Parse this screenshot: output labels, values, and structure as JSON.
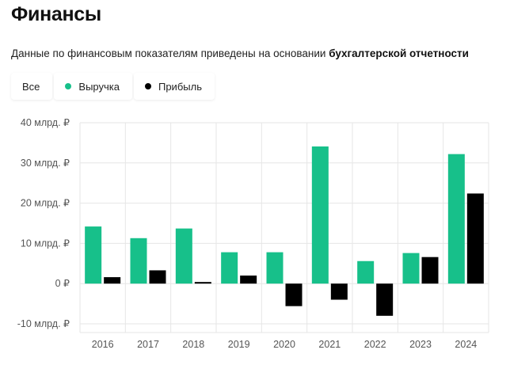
{
  "header": {
    "title": "Финансы",
    "subtitle_prefix": "Данные по финансовым показателям приведены на основании ",
    "subtitle_bold": "бухгалтерской отчетности"
  },
  "filters": [
    {
      "label": "Все",
      "color": null
    },
    {
      "label": "Выручка",
      "color": "#17c08a"
    },
    {
      "label": "Прибыль",
      "color": "#000000"
    }
  ],
  "chart_data": {
    "type": "bar",
    "categories": [
      "2016",
      "2017",
      "2018",
      "2019",
      "2020",
      "2021",
      "2022",
      "2023",
      "2024"
    ],
    "series": [
      {
        "name": "Выручка",
        "color": "#17c08a",
        "values": [
          14.2,
          11.3,
          13.7,
          7.8,
          7.8,
          34.1,
          5.6,
          7.6,
          32.2
        ]
      },
      {
        "name": "Прибыль",
        "color": "#000000",
        "values": [
          1.6,
          3.3,
          0.4,
          2.0,
          -5.6,
          -4.0,
          -8.0,
          6.6,
          22.4
        ]
      }
    ],
    "y_ticks": [
      {
        "value": 40,
        "label": "40 млрд. ₽"
      },
      {
        "value": 30,
        "label": "30 млрд. ₽"
      },
      {
        "value": 20,
        "label": "20 млрд. ₽"
      },
      {
        "value": 10,
        "label": "10 млрд. ₽"
      },
      {
        "value": 0,
        "label": "0 ₽"
      },
      {
        "value": -10,
        "label": "-10 млрд. ₽"
      }
    ],
    "ylim": [
      -10,
      40
    ],
    "grid": true,
    "legend": "top-left"
  }
}
